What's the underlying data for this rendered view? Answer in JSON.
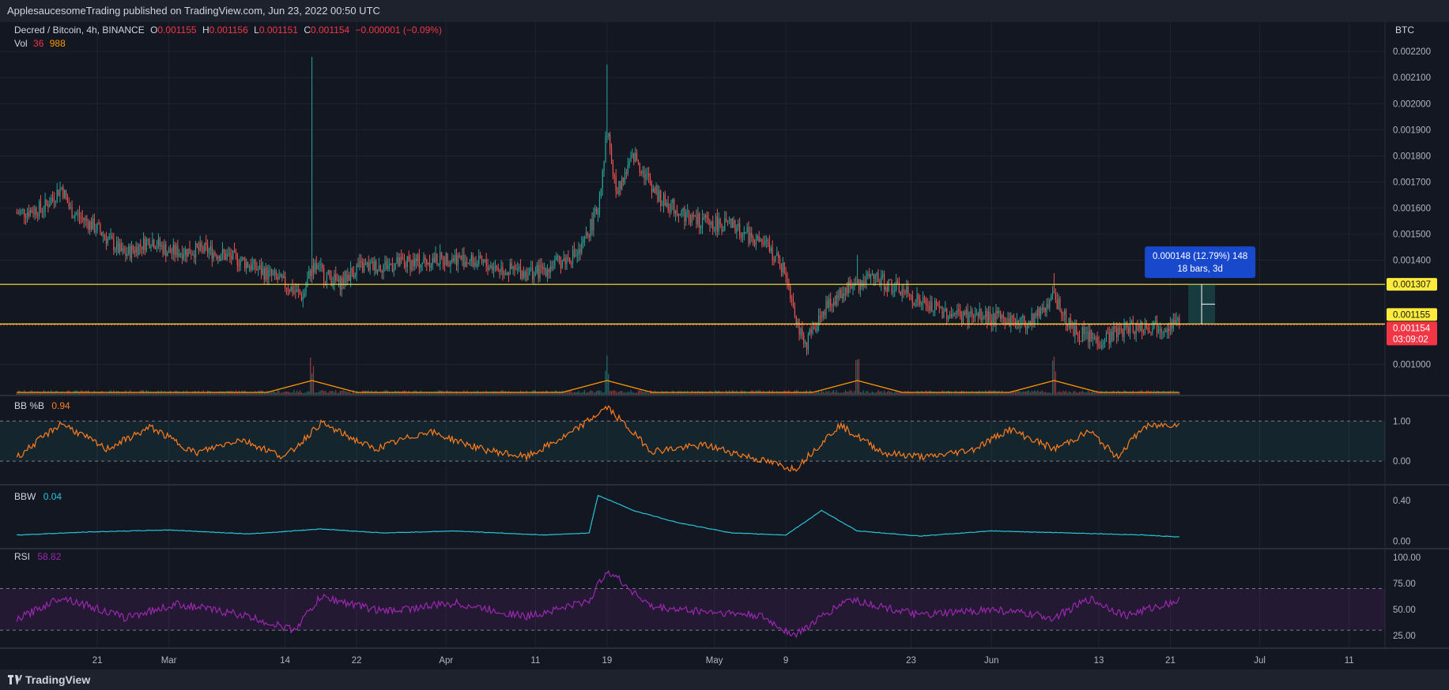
{
  "header": {
    "published": "ApplesaucesomeTrading published on TradingView.com, Jun 23, 2022 00:50 UTC"
  },
  "footer": {
    "logo_text": "TradingView"
  },
  "chart_data": [
    {
      "type": "candlestick",
      "symbol": "Decred / Bitcoin, 4h, BINANCE",
      "ohlc": {
        "o_label": "O",
        "o": "0.001155",
        "h_label": "H",
        "h": "0.001156",
        "l_label": "L",
        "l": "0.001151",
        "c_label": "C",
        "c": "0.001154",
        "change": "−0.000001 (−0.09%)"
      },
      "volume_label": "Vol",
      "volume_values": [
        "36",
        "988"
      ],
      "currency": "BTC",
      "y_ticks": [
        "0.002200",
        "0.002100",
        "0.002000",
        "0.001900",
        "0.001800",
        "0.001700",
        "0.001600",
        "0.001500",
        "0.001400",
        "0.001000"
      ],
      "ylim": [
        0.00092,
        0.00224
      ],
      "x_tick_labels": [
        "21",
        "Mar",
        "14",
        "22",
        "Apr",
        "11",
        "19",
        "May",
        "9",
        "23",
        "Jun",
        "13",
        "21",
        "Jul",
        "11"
      ],
      "price_path": [
        [
          "2022-02-12",
          0.00158
        ],
        [
          "2022-02-15",
          0.0016
        ],
        [
          "2022-02-17",
          0.00168
        ],
        [
          "2022-02-18",
          0.00159
        ],
        [
          "2022-02-21",
          0.00152
        ],
        [
          "2022-02-24",
          0.00142
        ],
        [
          "2022-02-27",
          0.00148
        ],
        [
          "2022-03-01",
          0.00143
        ],
        [
          "2022-03-05",
          0.00144
        ],
        [
          "2022-03-09",
          0.0014
        ],
        [
          "2022-03-13",
          0.00133
        ],
        [
          "2022-03-16",
          0.00126
        ],
        [
          "2022-03-17",
          0.00138
        ],
        [
          "2022-03-20",
          0.00131
        ],
        [
          "2022-03-22",
          0.00137
        ],
        [
          "2022-03-28",
          0.00139
        ],
        [
          "2022-04-02",
          0.00141
        ],
        [
          "2022-04-08",
          0.00136
        ],
        [
          "2022-04-11",
          0.00135
        ],
        [
          "2022-04-16",
          0.00143
        ],
        [
          "2022-04-18",
          0.0016
        ],
        [
          "2022-04-19",
          0.0019
        ],
        [
          "2022-04-20",
          0.00166
        ],
        [
          "2022-04-22",
          0.0018
        ],
        [
          "2022-04-25",
          0.00163
        ],
        [
          "2022-04-29",
          0.00155
        ],
        [
          "2022-05-03",
          0.00153
        ],
        [
          "2022-05-07",
          0.00145
        ],
        [
          "2022-05-09",
          0.00135
        ],
        [
          "2022-05-11",
          0.00106
        ],
        [
          "2022-05-13",
          0.0012
        ],
        [
          "2022-05-16",
          0.0013
        ],
        [
          "2022-05-19",
          0.00133
        ],
        [
          "2022-05-22",
          0.00128
        ],
        [
          "2022-05-25",
          0.00122
        ],
        [
          "2022-05-28",
          0.00119
        ],
        [
          "2022-06-01",
          0.00118
        ],
        [
          "2022-06-05",
          0.00116
        ],
        [
          "2022-06-08",
          0.00126
        ],
        [
          "2022-06-10",
          0.00113
        ],
        [
          "2022-06-13",
          0.00109
        ],
        [
          "2022-06-16",
          0.00114
        ],
        [
          "2022-06-19",
          0.00115
        ],
        [
          "2022-06-22",
          0.001154
        ]
      ],
      "spikes": [
        [
          "2022-03-17",
          0.00218
        ],
        [
          "2022-04-19",
          0.00215
        ],
        [
          "2022-05-17",
          0.00142
        ],
        [
          "2022-06-08",
          0.00135
        ]
      ],
      "horizontal_levels": [
        {
          "value": 0.001307,
          "label": "0.001307",
          "color": "#ffeb3b"
        },
        {
          "value": 0.001155,
          "label": "0.001155",
          "color": "#ffeb3b"
        }
      ],
      "last_price": {
        "value": 0.001154,
        "label": "0.001154",
        "countdown": "03:09:02",
        "color": "#f23645"
      },
      "measure": {
        "line1": "0.000148 (12.79%) 148",
        "line2": "18 bars, 3d"
      }
    },
    {
      "type": "line",
      "name": "BB %B",
      "value": "0.94",
      "color": "#ff7d1d",
      "y_ticks": [
        "1.00",
        "0.00"
      ],
      "ylim": [
        -0.45,
        1.5
      ],
      "band": [
        0,
        1
      ],
      "path": [
        [
          "2022-02-12",
          0.1
        ],
        [
          "2022-02-17",
          0.95
        ],
        [
          "2022-02-22",
          0.3
        ],
        [
          "2022-02-27",
          0.85
        ],
        [
          "2022-03-04",
          0.2
        ],
        [
          "2022-03-09",
          0.55
        ],
        [
          "2022-03-14",
          0.1
        ],
        [
          "2022-03-18",
          0.95
        ],
        [
          "2022-03-24",
          0.3
        ],
        [
          "2022-03-30",
          0.75
        ],
        [
          "2022-04-05",
          0.3
        ],
        [
          "2022-04-10",
          0.1
        ],
        [
          "2022-04-15",
          0.7
        ],
        [
          "2022-04-19",
          1.35
        ],
        [
          "2022-04-24",
          0.25
        ],
        [
          "2022-04-30",
          0.4
        ],
        [
          "2022-05-05",
          0.1
        ],
        [
          "2022-05-10",
          -0.2
        ],
        [
          "2022-05-15",
          0.9
        ],
        [
          "2022-05-20",
          0.2
        ],
        [
          "2022-05-25",
          0.1
        ],
        [
          "2022-05-30",
          0.3
        ],
        [
          "2022-06-03",
          0.8
        ],
        [
          "2022-06-08",
          0.3
        ],
        [
          "2022-06-12",
          0.75
        ],
        [
          "2022-06-15",
          0.1
        ],
        [
          "2022-06-18",
          0.85
        ],
        [
          "2022-06-22",
          0.94
        ]
      ]
    },
    {
      "type": "line",
      "name": "BBW",
      "value": "0.04",
      "color": "#26c6da",
      "y_ticks": [
        "0.40",
        "0.00"
      ],
      "ylim": [
        -0.02,
        0.5
      ],
      "path": [
        [
          "2022-02-12",
          0.06
        ],
        [
          "2022-02-20",
          0.09
        ],
        [
          "2022-03-01",
          0.11
        ],
        [
          "2022-03-10",
          0.07
        ],
        [
          "2022-03-18",
          0.12
        ],
        [
          "2022-03-25",
          0.08
        ],
        [
          "2022-04-02",
          0.1
        ],
        [
          "2022-04-12",
          0.06
        ],
        [
          "2022-04-17",
          0.08
        ],
        [
          "2022-04-18",
          0.45
        ],
        [
          "2022-04-22",
          0.3
        ],
        [
          "2022-04-27",
          0.18
        ],
        [
          "2022-05-03",
          0.08
        ],
        [
          "2022-05-09",
          0.06
        ],
        [
          "2022-05-13",
          0.3
        ],
        [
          "2022-05-17",
          0.1
        ],
        [
          "2022-05-24",
          0.05
        ],
        [
          "2022-06-01",
          0.1
        ],
        [
          "2022-06-10",
          0.08
        ],
        [
          "2022-06-18",
          0.06
        ],
        [
          "2022-06-22",
          0.04
        ]
      ]
    },
    {
      "type": "line",
      "name": "RSI",
      "value": "58.82",
      "color": "#9c27b0",
      "y_ticks": [
        "100.00",
        "75.00",
        "50.00",
        "25.00"
      ],
      "ylim": [
        18,
        103
      ],
      "band": [
        30,
        70
      ],
      "path": [
        [
          "2022-02-12",
          40
        ],
        [
          "2022-02-17",
          62
        ],
        [
          "2022-02-24",
          42
        ],
        [
          "2022-03-02",
          55
        ],
        [
          "2022-03-09",
          45
        ],
        [
          "2022-03-15",
          30
        ],
        [
          "2022-03-18",
          62
        ],
        [
          "2022-03-25",
          48
        ],
        [
          "2022-04-02",
          56
        ],
        [
          "2022-04-10",
          43
        ],
        [
          "2022-04-17",
          58
        ],
        [
          "2022-04-19",
          88
        ],
        [
          "2022-04-24",
          52
        ],
        [
          "2022-04-30",
          48
        ],
        [
          "2022-05-06",
          44
        ],
        [
          "2022-05-10",
          25
        ],
        [
          "2022-05-16",
          60
        ],
        [
          "2022-05-24",
          44
        ],
        [
          "2022-06-01",
          50
        ],
        [
          "2022-06-08",
          42
        ],
        [
          "2022-06-12",
          60
        ],
        [
          "2022-06-16",
          44
        ],
        [
          "2022-06-22",
          58.82
        ]
      ]
    }
  ]
}
